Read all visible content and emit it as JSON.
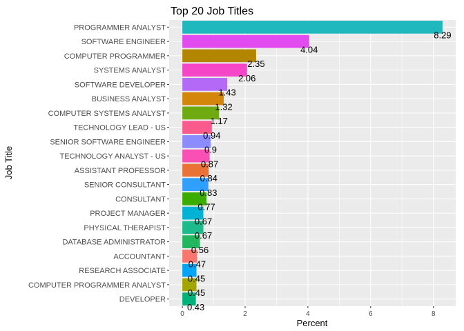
{
  "chart_data": {
    "type": "bar",
    "orientation": "horizontal",
    "title": "Top 20 Job Titles",
    "xlabel": "Percent",
    "ylabel": "Job Title",
    "xlim": [
      -0.42,
      8.71
    ],
    "xticks": [
      0,
      2,
      4,
      6,
      8
    ],
    "grid": true,
    "legend": "none",
    "panel_background": "#ebebeb",
    "grid_color": "#ffffff",
    "categories": [
      "PROGRAMMER ANALYST",
      "SOFTWARE ENGINEER",
      "COMPUTER PROGRAMMER",
      "SYSTEMS ANALYST",
      "SOFTWARE DEVELOPER",
      "BUSINESS ANALYST",
      "COMPUTER SYSTEMS ANALYST",
      "TECHNOLOGY LEAD - US",
      "SENIOR SOFTWARE ENGINEER",
      "TECHNOLOGY ANALYST - US",
      "ASSISTANT PROFESSOR",
      "SENIOR CONSULTANT",
      "CONSULTANT",
      "PROJECT MANAGER",
      "PHYSICAL THERAPIST",
      "DATABASE ADMINISTRATOR",
      "ACCOUNTANT",
      "RESEARCH ASSOCIATE",
      "COMPUTER PROGRAMMER ANALYST",
      "DEVELOPER"
    ],
    "values": [
      8.29,
      4.04,
      2.35,
      2.06,
      1.43,
      1.32,
      1.17,
      0.94,
      0.9,
      0.87,
      0.84,
      0.83,
      0.77,
      0.67,
      0.67,
      0.56,
      0.47,
      0.45,
      0.45,
      0.43
    ],
    "value_labels": [
      "8.29",
      "4.04",
      "2.35",
      "2.06",
      "1.43",
      "1.32",
      "1.17",
      "0.94",
      "0.9",
      "0.87",
      "0.84",
      "0.83",
      "0.77",
      "0.67",
      "0.67",
      "0.56",
      "0.47",
      "0.45",
      "0.45",
      "0.43"
    ],
    "colors": [
      "#1EB8BE",
      "#E14BF0",
      "#B38600",
      "#F546C8",
      "#B36BF7",
      "#D4860B",
      "#6EAA10",
      "#FA5A8C",
      "#8C8CFF",
      "#FA4FB5",
      "#EB7236",
      "#2FA0FF",
      "#3AAD00",
      "#00B3D4",
      "#1DBA8C",
      "#22B65E",
      "#F8766D",
      "#00A6F5",
      "#A3A500",
      "#00B37A"
    ]
  }
}
